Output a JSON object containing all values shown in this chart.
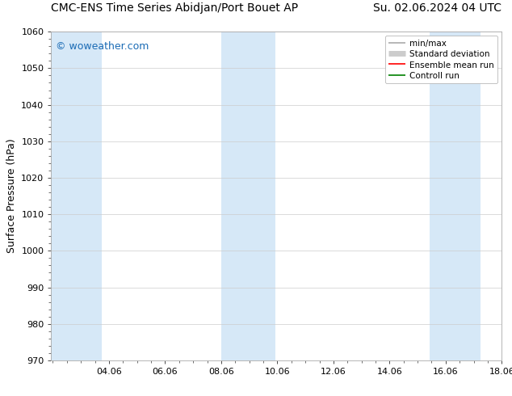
{
  "title_left": "CMC-ENS Time Series Abidjan/Port Bouet AP",
  "title_right": "Su. 02.06.2024 04 UTC",
  "ylabel": "Surface Pressure (hPa)",
  "xlim": [
    2.0,
    18.06
  ],
  "ylim": [
    970,
    1060
  ],
  "yticks": [
    970,
    980,
    990,
    1000,
    1010,
    1020,
    1030,
    1040,
    1050,
    1060
  ],
  "xtick_labels": [
    "04.06",
    "06.06",
    "08.06",
    "10.06",
    "12.06",
    "14.06",
    "16.06",
    "18.06"
  ],
  "xtick_positions": [
    4.06,
    6.06,
    8.06,
    10.06,
    12.06,
    14.06,
    16.06,
    18.06
  ],
  "watermark": "© woweather.com",
  "watermark_color": "#1a6bb5",
  "bg_color": "#ffffff",
  "plot_bg_color": "#ffffff",
  "shaded_bands": [
    {
      "xmin": 2.0,
      "xmax": 3.8,
      "color": "#d6e8f7"
    },
    {
      "xmin": 8.06,
      "xmax": 10.0,
      "color": "#d6e8f7"
    },
    {
      "xmin": 15.5,
      "xmax": 17.3,
      "color": "#d6e8f7"
    }
  ],
  "legend_entries": [
    {
      "label": "min/max",
      "color": "#aaaaaa",
      "lw": 1.2
    },
    {
      "label": "Standard deviation",
      "color": "#cccccc",
      "lw": 5.0
    },
    {
      "label": "Ensemble mean run",
      "color": "#ff0000",
      "lw": 1.2
    },
    {
      "label": "Controll run",
      "color": "#008000",
      "lw": 1.2
    }
  ],
  "title_fontsize": 10,
  "axis_label_fontsize": 9,
  "tick_fontsize": 8,
  "legend_fontsize": 7.5,
  "watermark_fontsize": 9
}
